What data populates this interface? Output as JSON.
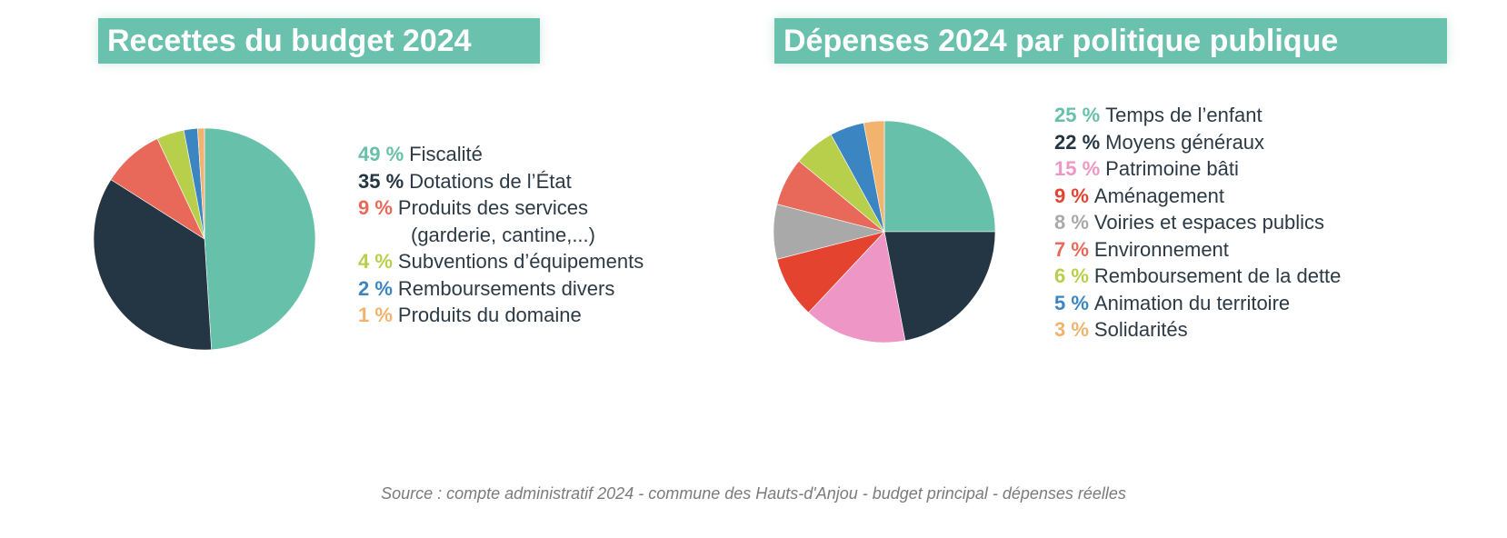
{
  "source_note": "Source : compte administratif 2024 - commune des Hauts-d'Anjou - budget principal - dépenses réelles",
  "chart_data": [
    {
      "type": "pie",
      "title": "Recettes du budget 2024",
      "slices": [
        {
          "pct_label": "49 %",
          "label": "Fiscalité",
          "label2": "",
          "value": 49,
          "color": "#67c0aa"
        },
        {
          "pct_label": "35 %",
          "label": "Dotations de l’État",
          "label2": "",
          "value": 35,
          "color": "#243643"
        },
        {
          "pct_label": "9 %",
          "label": "Produits des services",
          "label2": "(garderie, cantine,...)",
          "value": 9,
          "color": "#e8695a"
        },
        {
          "pct_label": "4 %",
          "label": "Subventions d’équipements",
          "label2": "",
          "value": 4,
          "color": "#b7cf4b"
        },
        {
          "pct_label": "2 %",
          "label": "Remboursements divers",
          "label2": "",
          "value": 2,
          "color": "#3b86c2"
        },
        {
          "pct_label": "1 %",
          "label": "Produits du domaine",
          "label2": "",
          "value": 1,
          "color": "#f1b36e"
        }
      ]
    },
    {
      "type": "pie",
      "title": "Dépenses 2024 par politique publique",
      "slices": [
        {
          "pct_label": "25 %",
          "label": "Temps de l’enfant",
          "value": 25,
          "color": "#67c0aa"
        },
        {
          "pct_label": "22 %",
          "label": "Moyens généraux",
          "value": 22,
          "color": "#243643"
        },
        {
          "pct_label": "15 %",
          "label": "Patrimoine bâti",
          "value": 15,
          "color": "#ee96c5"
        },
        {
          "pct_label": "9 %",
          "label": "Aménagement",
          "value": 9,
          "color": "#e4432f"
        },
        {
          "pct_label": "8 %",
          "label": "Voiries et espaces publics",
          "value": 8,
          "color": "#a9a9a9"
        },
        {
          "pct_label": "7 %",
          "label": "Environnement",
          "value": 7,
          "color": "#e8695a"
        },
        {
          "pct_label": "6 %",
          "label": "Remboursement de la dette",
          "value": 6,
          "color": "#b7cf4b"
        },
        {
          "pct_label": "5 %",
          "label": "Animation du territoire",
          "value": 5,
          "color": "#3b86c2"
        },
        {
          "pct_label": "3 %",
          "label": "Solidarités",
          "value": 3,
          "color": "#f1b36e"
        }
      ]
    }
  ]
}
